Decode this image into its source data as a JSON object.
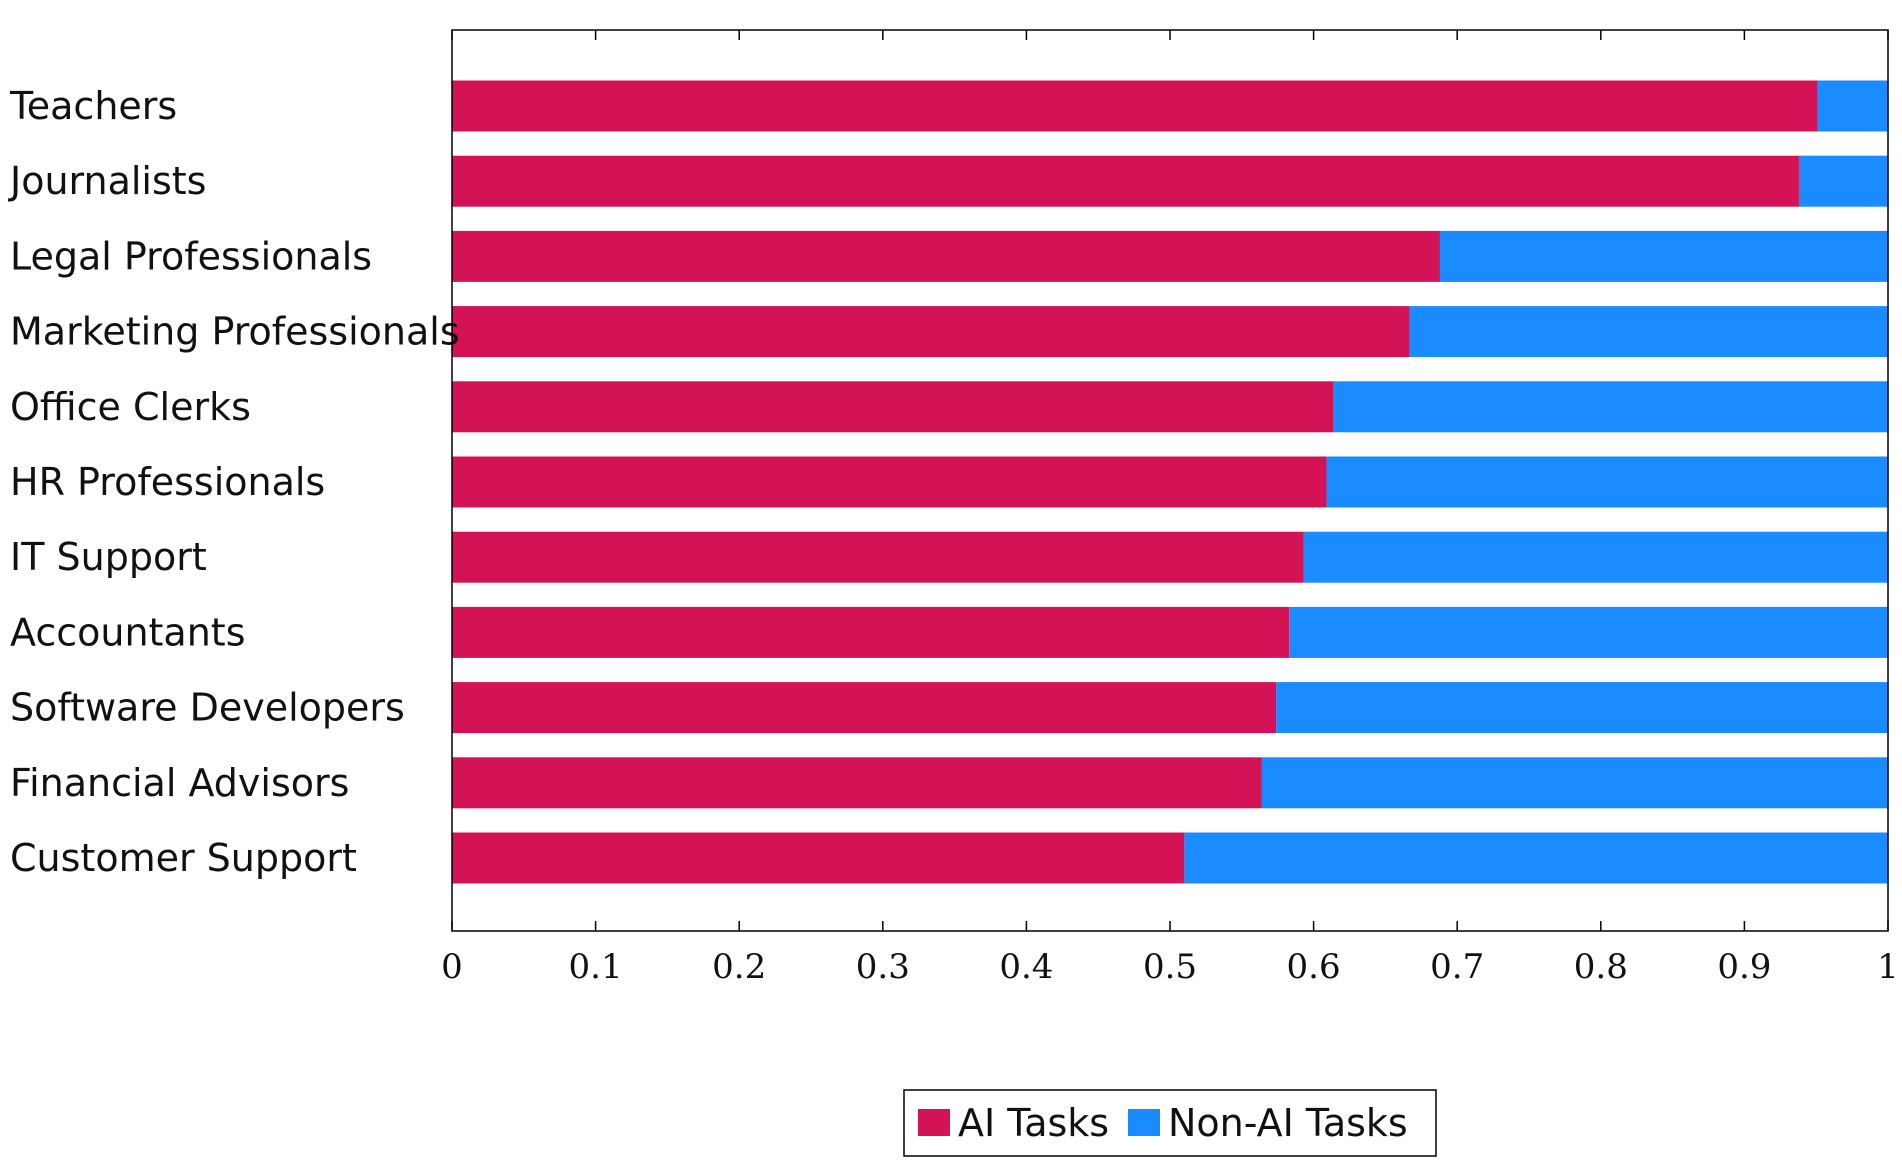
{
  "chart_data": {
    "type": "bar",
    "orientation": "horizontal",
    "stacked": true,
    "title": "",
    "xlabel": "",
    "ylabel": "",
    "xlim": [
      0,
      1
    ],
    "xticks": [
      0,
      0.1,
      0.2,
      0.3,
      0.4,
      0.5,
      0.6,
      0.7,
      0.8,
      0.9,
      1
    ],
    "xtick_labels": [
      "0",
      "0.1",
      "0.2",
      "0.3",
      "0.4",
      "0.5",
      "0.6",
      "0.7",
      "0.8",
      "0.9",
      "1"
    ],
    "grid": false,
    "legend_position": "bottom-center",
    "categories": [
      "Teachers",
      "Journalists",
      "Legal Professionals",
      "Marketing Professionals",
      "Office Clerks",
      "HR Professionals",
      "IT Support",
      "Accountants",
      "Software Developers",
      "Financial Advisors",
      "Customer Support"
    ],
    "series": [
      {
        "name": "AI Tasks",
        "color": "#d31356",
        "values": [
          0.951,
          0.938,
          0.688,
          0.667,
          0.614,
          0.609,
          0.593,
          0.583,
          0.574,
          0.564,
          0.51
        ]
      },
      {
        "name": "Non-AI Tasks",
        "color": "#1a8cff",
        "values": [
          0.049,
          0.062,
          0.312,
          0.333,
          0.386,
          0.391,
          0.407,
          0.417,
          0.426,
          0.436,
          0.49
        ]
      }
    ]
  }
}
